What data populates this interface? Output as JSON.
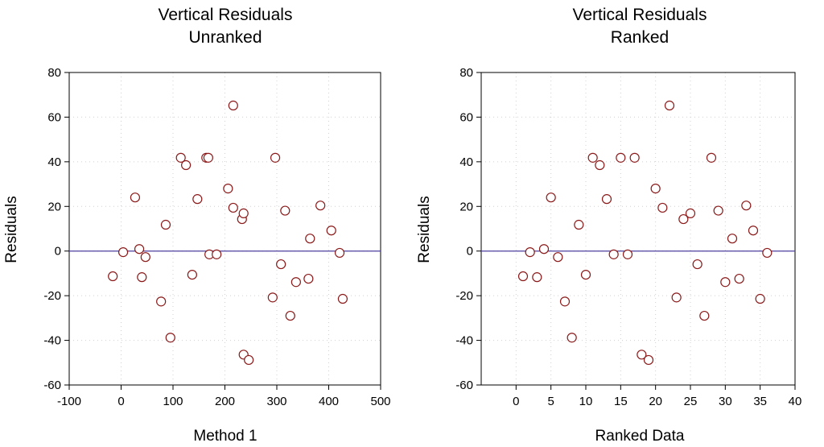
{
  "chart_data": [
    {
      "type": "scatter",
      "title": [
        "Vertical Residuals",
        "Unranked"
      ],
      "xlabel": "Method 1",
      "ylabel": "Residuals",
      "xlim": [
        -100,
        500
      ],
      "ylim": [
        -60,
        80
      ],
      "xticks": [
        -100,
        0,
        100,
        200,
        300,
        400,
        500
      ],
      "yticks": [
        -60,
        -40,
        -20,
        0,
        20,
        40,
        60,
        80
      ],
      "grid": true,
      "reference_line_y": 0,
      "points": [
        [
          -16,
          -11.3
        ],
        [
          4,
          -0.5
        ],
        [
          27,
          24
        ],
        [
          35,
          0.9
        ],
        [
          40,
          -11.7
        ],
        [
          47,
          -2.7
        ],
        [
          77,
          -22.6
        ],
        [
          86,
          11.8
        ],
        [
          95,
          -38.8
        ],
        [
          115,
          41.8
        ],
        [
          125,
          38.5
        ],
        [
          137,
          -10.6
        ],
        [
          147,
          23.3
        ],
        [
          164,
          41.8
        ],
        [
          168,
          41.8
        ],
        [
          170,
          -1.5
        ],
        [
          184,
          -1.5
        ],
        [
          206,
          28
        ],
        [
          216,
          19.4
        ],
        [
          216,
          65.2
        ],
        [
          236,
          -46.4
        ],
        [
          246,
          -48.8
        ],
        [
          233,
          14.3
        ],
        [
          236,
          16.9
        ],
        [
          292,
          -20.8
        ],
        [
          297,
          41.8
        ],
        [
          308,
          -5.9
        ],
        [
          316,
          18.1
        ],
        [
          326,
          -29
        ],
        [
          337,
          -13.9
        ],
        [
          364,
          5.6
        ],
        [
          361,
          -12.4
        ],
        [
          384,
          20.4
        ],
        [
          405,
          9.2
        ],
        [
          421,
          -0.8
        ],
        [
          427,
          -21.4
        ]
      ]
    },
    {
      "type": "scatter",
      "title": [
        "Vertical Residuals",
        "Ranked"
      ],
      "xlabel": "Ranked Data",
      "ylabel": "Residuals",
      "xlim": [
        -5,
        40
      ],
      "ylim": [
        -60,
        80
      ],
      "xticks": [
        0,
        5,
        10,
        15,
        20,
        25,
        30,
        35,
        40
      ],
      "yticks": [
        -60,
        -40,
        -20,
        0,
        20,
        40,
        60,
        80
      ],
      "grid": true,
      "reference_line_y": 0,
      "points": [
        [
          1,
          -11.3
        ],
        [
          2,
          -0.5
        ],
        [
          3,
          -11.7
        ],
        [
          4,
          0.9
        ],
        [
          5,
          24
        ],
        [
          6,
          -2.7
        ],
        [
          7,
          -22.6
        ],
        [
          8,
          -38.8
        ],
        [
          9,
          11.8
        ],
        [
          10,
          -10.6
        ],
        [
          11,
          41.8
        ],
        [
          12,
          38.5
        ],
        [
          13,
          23.3
        ],
        [
          14,
          -1.5
        ],
        [
          15,
          41.8
        ],
        [
          16,
          -1.5
        ],
        [
          17,
          41.8
        ],
        [
          18,
          -46.4
        ],
        [
          19,
          -48.8
        ],
        [
          20,
          28
        ],
        [
          21,
          19.4
        ],
        [
          22,
          65.2
        ],
        [
          23,
          -20.8
        ],
        [
          24,
          14.3
        ],
        [
          25,
          16.9
        ],
        [
          26,
          -5.9
        ],
        [
          27,
          -29
        ],
        [
          28,
          41.8
        ],
        [
          29,
          18.1
        ],
        [
          30,
          -13.9
        ],
        [
          31,
          5.6
        ],
        [
          32,
          -12.4
        ],
        [
          33,
          20.4
        ],
        [
          34,
          9.2
        ],
        [
          35,
          -21.4
        ],
        [
          36,
          -0.8
        ]
      ]
    }
  ],
  "colors": {
    "marker": "#8b1a1a",
    "zero_line": "#4b3f9e",
    "grid": "#d0d0d0"
  }
}
